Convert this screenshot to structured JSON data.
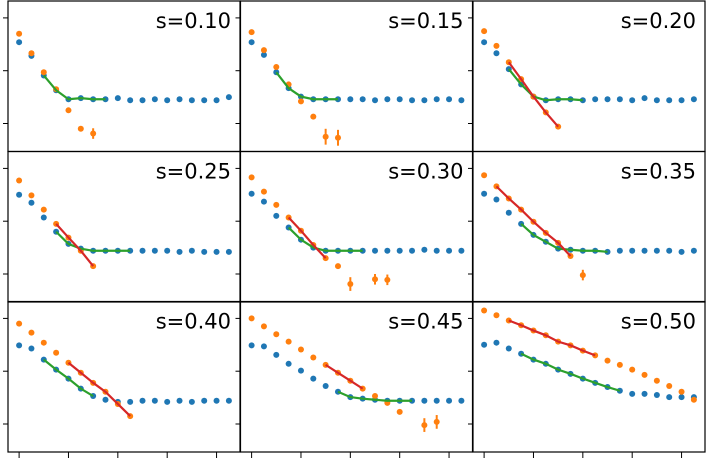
{
  "chart_data": {
    "type": "scatter",
    "layout": "3x3 grid of panels",
    "xlim": [
      -0.9,
      17.9
    ],
    "ylim": [
      -0.53,
      2.32
    ],
    "xticks": [
      0,
      4,
      8,
      12,
      16
    ],
    "yticks": [
      0,
      1,
      2
    ],
    "tick_labels_shown": false,
    "colors": {
      "series_a": "#1f77b4",
      "series_b": "#ff7f0e",
      "fit_a": "#2ca02c",
      "fit_b": "#d62728"
    },
    "x": [
      0,
      1,
      2,
      3,
      4,
      5,
      6,
      7,
      8,
      9,
      10,
      11,
      12,
      13,
      14,
      15,
      16,
      17
    ],
    "panels": [
      {
        "label": "s=0.10",
        "blue": [
          1.54,
          1.28,
          0.91,
          0.63,
          0.46,
          0.48,
          0.46,
          0.46,
          0.48,
          0.44,
          0.44,
          0.46,
          0.44,
          0.46,
          0.44,
          0.44,
          0.44,
          0.5
        ],
        "orange": [
          1.7,
          1.33,
          0.97,
          0.65,
          0.25,
          -0.1,
          -0.19
        ],
        "orange_err": [
          0,
          0,
          0,
          0,
          0,
          0,
          0.1
        ],
        "green_fit": [
          2,
          7
        ],
        "red_fit": null
      },
      {
        "label": "s=0.15",
        "blue": [
          1.54,
          1.3,
          0.97,
          0.67,
          0.51,
          0.46,
          0.46,
          0.46,
          0.46,
          0.46,
          0.44,
          0.46,
          0.46,
          0.44,
          0.44,
          0.46,
          0.46,
          0.44
        ],
        "orange": [
          1.73,
          1.39,
          1.07,
          0.74,
          0.42,
          0.13,
          -0.25,
          -0.27
        ],
        "orange_err": [
          0,
          0,
          0,
          0,
          0,
          0,
          0.15,
          0.15
        ],
        "green_fit": [
          2,
          7
        ],
        "red_fit": null
      },
      {
        "label": "s=0.20",
        "blue": [
          1.54,
          1.33,
          1.03,
          0.74,
          0.51,
          0.44,
          0.46,
          0.46,
          0.44,
          0.46,
          0.46,
          0.46,
          0.44,
          0.48,
          0.44,
          0.44,
          0.44,
          0.46
        ],
        "orange": [
          1.75,
          1.47,
          1.16,
          0.84,
          0.51,
          0.21,
          -0.06
        ],
        "orange_err": [],
        "green_fit": [
          2,
          8
        ],
        "red_fit": [
          2,
          6
        ]
      },
      {
        "label": "s=0.25",
        "blue": [
          1.5,
          1.35,
          1.07,
          0.8,
          0.57,
          0.48,
          0.44,
          0.44,
          0.44,
          0.44,
          0.44,
          0.44,
          0.44,
          0.42,
          0.44,
          0.42,
          0.42,
          0.42
        ],
        "orange": [
          1.77,
          1.49,
          1.22,
          0.95,
          0.69,
          0.44,
          0.15
        ],
        "orange_err": [],
        "green_fit": [
          3,
          9
        ],
        "red_fit": [
          3,
          6
        ]
      },
      {
        "label": "s=0.30",
        "blue": [
          1.52,
          1.37,
          1.1,
          0.88,
          0.65,
          0.5,
          0.44,
          0.44,
          0.44,
          0.44,
          0.44,
          0.44,
          0.44,
          0.44,
          0.46,
          0.44,
          0.44,
          0.44
        ],
        "orange": [
          1.83,
          1.56,
          1.31,
          1.07,
          0.82,
          0.55,
          0.3,
          0.15,
          -0.19,
          null,
          -0.1,
          -0.11
        ],
        "orange_err": [
          0,
          0,
          0,
          0,
          0,
          0,
          0,
          0,
          0.13,
          0,
          0.1,
          0.1
        ],
        "green_fit": [
          3,
          9
        ],
        "red_fit": [
          3,
          6
        ]
      },
      {
        "label": "s=0.35",
        "blue": [
          1.52,
          1.41,
          1.16,
          0.95,
          0.74,
          0.61,
          0.48,
          0.46,
          0.44,
          0.44,
          0.42,
          0.44,
          0.44,
          0.44,
          0.44,
          0.44,
          0.42,
          0.44
        ],
        "orange": [
          1.87,
          1.66,
          1.43,
          1.22,
          0.99,
          0.78,
          0.59,
          0.34,
          -0.02
        ],
        "orange_err": [
          0,
          0,
          0,
          0,
          0,
          0,
          0,
          0,
          0.1
        ],
        "green_fit": [
          3,
          10
        ],
        "red_fit": [
          1,
          7
        ]
      },
      {
        "label": "s=0.40",
        "blue": [
          1.49,
          1.43,
          1.22,
          1.03,
          0.86,
          0.67,
          0.53,
          0.46,
          0.42,
          0.42,
          0.44,
          0.44,
          0.42,
          0.44,
          0.42,
          0.44,
          0.44,
          0.44
        ],
        "orange": [
          1.9,
          1.73,
          1.54,
          1.35,
          1.16,
          0.97,
          0.78,
          0.61,
          0.38,
          0.15
        ],
        "orange_err": [],
        "green_fit": [
          2,
          6
        ],
        "red_fit": [
          4,
          9
        ]
      },
      {
        "label": "s=0.45",
        "blue": [
          1.49,
          1.47,
          1.31,
          1.14,
          1.01,
          0.86,
          0.72,
          0.61,
          0.51,
          0.48,
          0.46,
          0.44,
          0.44,
          0.44,
          0.44,
          0.44,
          0.44,
          0.44
        ],
        "orange": [
          2.0,
          1.85,
          1.7,
          1.56,
          1.41,
          1.26,
          1.12,
          0.97,
          0.82,
          0.67,
          0.53,
          0.4,
          0.23,
          null,
          -0.02,
          0.04
        ],
        "orange_err": [
          0,
          0,
          0,
          0,
          0,
          0,
          0,
          0,
          0,
          0,
          0,
          0,
          0,
          0,
          0.13,
          0.13
        ],
        "green_fit": [
          7,
          13
        ],
        "red_fit": [
          6,
          9
        ]
      },
      {
        "label": "s=0.50",
        "blue": [
          1.5,
          1.54,
          1.43,
          1.33,
          1.22,
          1.14,
          1.03,
          0.95,
          0.86,
          0.78,
          0.7,
          0.63,
          0.57,
          0.57,
          0.55,
          0.51,
          0.51,
          0.51
        ],
        "orange": [
          2.15,
          2.06,
          1.96,
          1.87,
          1.77,
          1.68,
          1.56,
          1.49,
          1.39,
          1.3,
          1.2,
          1.12,
          1.03,
          0.93,
          0.82,
          0.72,
          0.61,
          0.46
        ],
        "orange_err": [],
        "green_fit": [
          3,
          11
        ],
        "red_fit": [
          2,
          9
        ]
      }
    ]
  }
}
